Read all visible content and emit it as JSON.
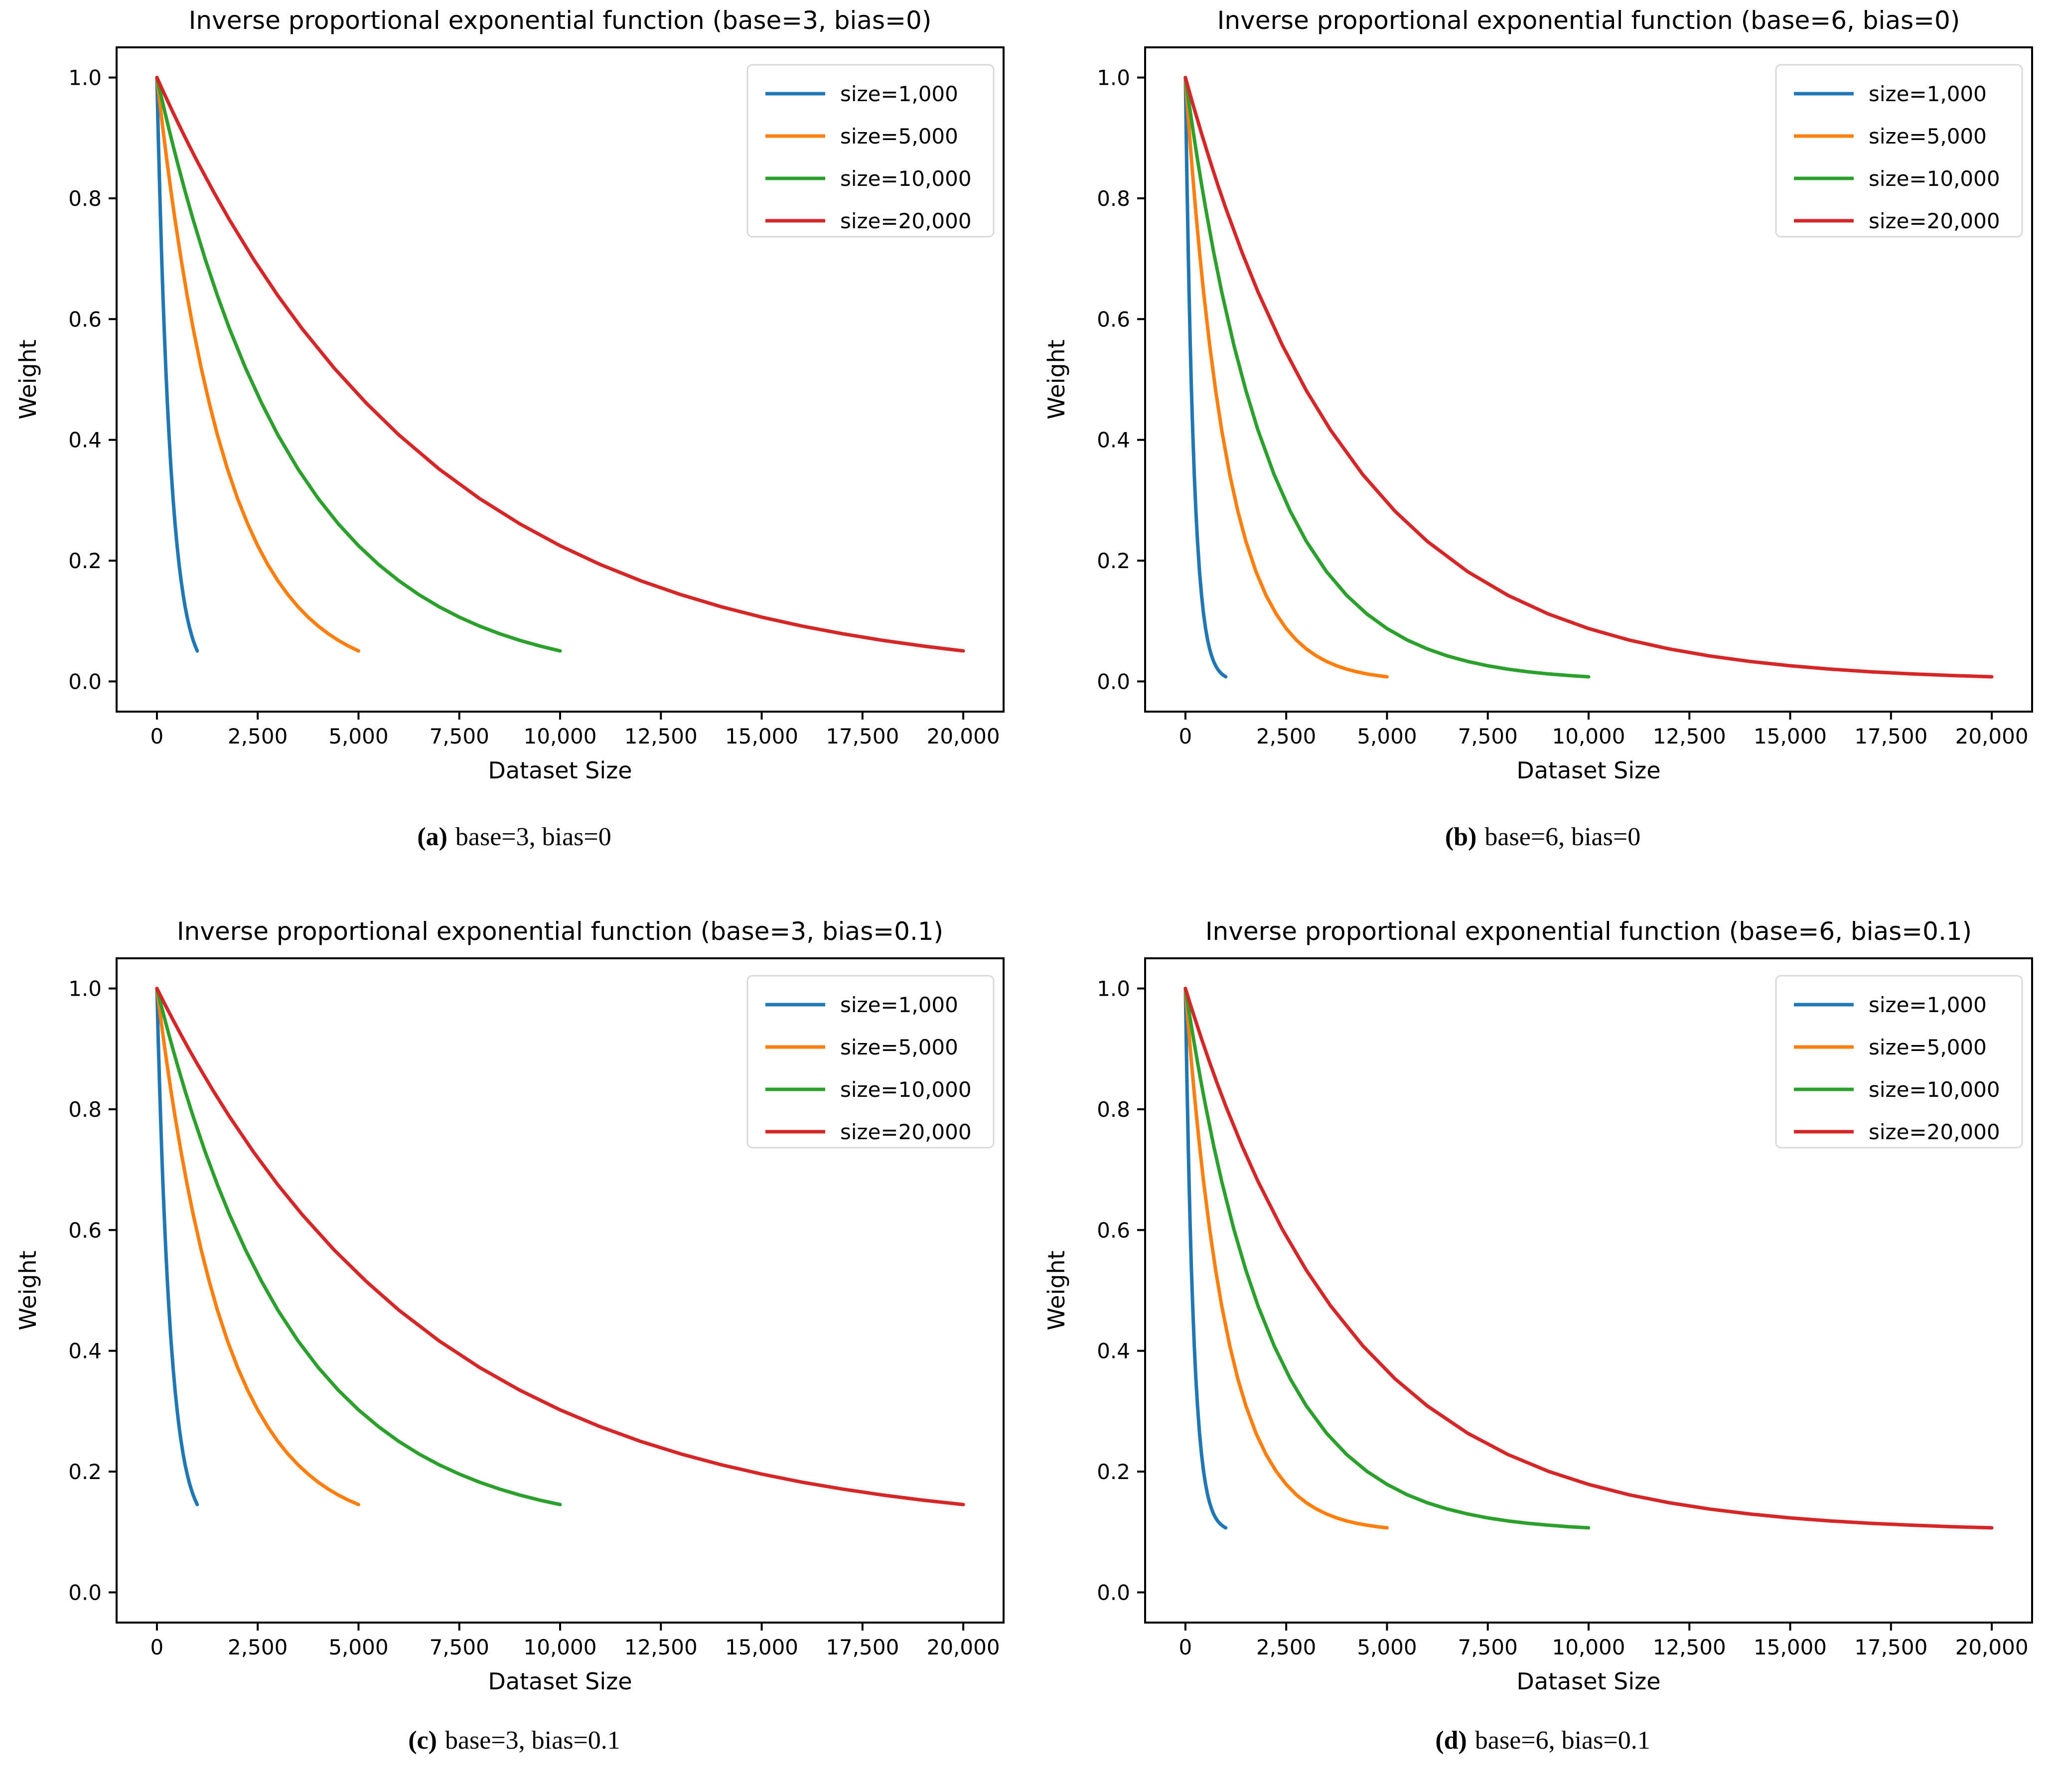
{
  "figure": {
    "background": "#ffffff",
    "text_color": "#000000",
    "legend_border_color": "#d9d9d9",
    "series_colors": {
      "blue": "#1f77b4",
      "orange": "#ff7f0e",
      "green": "#2ca02c",
      "red": "#d62728"
    }
  },
  "chart_data": [
    {
      "id": "a",
      "type": "line",
      "title": "Inverse proportional exponential function (base=3, bias=0)",
      "caption_label": "(a)",
      "caption_text": "base=3, bias=0",
      "xlabel": "Dataset Size",
      "ylabel": "Weight",
      "base": 3,
      "bias": 0,
      "grid": false,
      "legend_position": "upper right",
      "xlim": [
        -1000,
        21000
      ],
      "ylim": [
        -0.05,
        1.05
      ],
      "x_ticks": [
        {
          "v": 0,
          "label": "0"
        },
        {
          "v": 2500,
          "label": "2,500"
        },
        {
          "v": 5000,
          "label": "5,000"
        },
        {
          "v": 7500,
          "label": "7,500"
        },
        {
          "v": 10000,
          "label": "10,000"
        },
        {
          "v": 12500,
          "label": "12,500"
        },
        {
          "v": 15000,
          "label": "15,000"
        },
        {
          "v": 17500,
          "label": "17,500"
        },
        {
          "v": 20000,
          "label": "20,000"
        }
      ],
      "y_ticks": [
        {
          "v": 0.0,
          "label": "0.0"
        },
        {
          "v": 0.2,
          "label": "0.2"
        },
        {
          "v": 0.4,
          "label": "0.4"
        },
        {
          "v": 0.6,
          "label": "0.6"
        },
        {
          "v": 0.8,
          "label": "0.8"
        },
        {
          "v": 1.0,
          "label": "1.0"
        }
      ],
      "series": [
        {
          "label": "size=1,000",
          "color": "#1f77b4",
          "size": 1000
        },
        {
          "label": "size=5,000",
          "color": "#ff7f0e",
          "size": 5000
        },
        {
          "label": "size=10,000",
          "color": "#2ca02c",
          "size": 10000
        },
        {
          "label": "size=20,000",
          "color": "#d62728",
          "size": 20000
        }
      ],
      "curve": {
        "t": [
          0,
          0.005,
          0.01,
          0.02,
          0.03,
          0.04,
          0.05,
          0.07,
          0.09,
          0.12,
          0.15,
          0.18,
          0.22,
          0.26,
          0.3,
          0.35,
          0.4,
          0.45,
          0.5,
          0.55,
          0.6,
          0.65,
          0.7,
          0.75,
          0.8,
          0.85,
          0.9,
          0.95,
          1
        ],
        "w": [
          1,
          0.9852,
          0.9706,
          0.942,
          0.9143,
          0.8874,
          0.8613,
          0.8114,
          0.7643,
          0.6988,
          0.6389,
          0.5842,
          0.5186,
          0.4604,
          0.4082,
          0.3516,
          0.3029,
          0.2609,
          0.2247,
          0.1935,
          0.1667,
          0.1436,
          0.1236,
          0.1065,
          0.0917,
          0.079,
          0.068,
          0.0586,
          0.0505
        ]
      }
    },
    {
      "id": "b",
      "type": "line",
      "title": "Inverse proportional exponential function (base=6, bias=0)",
      "caption_label": "(b)",
      "caption_text": "base=6, bias=0",
      "xlabel": "Dataset Size",
      "ylabel": "Weight",
      "base": 6,
      "bias": 0,
      "grid": false,
      "legend_position": "upper right",
      "xlim": [
        -1000,
        21000
      ],
      "ylim": [
        -0.05,
        1.05
      ],
      "x_ticks": [
        {
          "v": 0,
          "label": "0"
        },
        {
          "v": 2500,
          "label": "2,500"
        },
        {
          "v": 5000,
          "label": "5,000"
        },
        {
          "v": 7500,
          "label": "7,500"
        },
        {
          "v": 10000,
          "label": "10,000"
        },
        {
          "v": 12500,
          "label": "12,500"
        },
        {
          "v": 15000,
          "label": "15,000"
        },
        {
          "v": 17500,
          "label": "17,500"
        },
        {
          "v": 20000,
          "label": "20,000"
        }
      ],
      "y_ticks": [
        {
          "v": 0.0,
          "label": "0.0"
        },
        {
          "v": 0.2,
          "label": "0.2"
        },
        {
          "v": 0.4,
          "label": "0.4"
        },
        {
          "v": 0.6,
          "label": "0.6"
        },
        {
          "v": 0.8,
          "label": "0.8"
        },
        {
          "v": 1.0,
          "label": "1.0"
        }
      ],
      "series": [
        {
          "label": "size=1,000",
          "color": "#1f77b4",
          "size": 1000
        },
        {
          "label": "size=5,000",
          "color": "#ff7f0e",
          "size": 5000
        },
        {
          "label": "size=10,000",
          "color": "#2ca02c",
          "size": 10000
        },
        {
          "label": "size=20,000",
          "color": "#d62728",
          "size": 20000
        }
      ],
      "curve": {
        "t": [
          0,
          0.005,
          0.01,
          0.02,
          0.03,
          0.04,
          0.05,
          0.07,
          0.09,
          0.12,
          0.15,
          0.18,
          0.22,
          0.26,
          0.3,
          0.35,
          0.4,
          0.45,
          0.5,
          0.55,
          0.6,
          0.65,
          0.7,
          0.75,
          0.8,
          0.85,
          0.9,
          0.95,
          1
        ],
        "w": [
          1,
          0.9759,
          0.9525,
          0.9072,
          0.8641,
          0.823,
          0.7839,
          0.7111,
          0.6451,
          0.5573,
          0.4816,
          0.4162,
          0.3425,
          0.2818,
          0.2319,
          0.1818,
          0.1425,
          0.1117,
          0.0876,
          0.0686,
          0.0538,
          0.0422,
          0.0331,
          0.0259,
          0.0203,
          0.0159,
          0.0125,
          0.0098,
          0.0077
        ]
      }
    },
    {
      "id": "c",
      "type": "line",
      "title": "Inverse proportional exponential function (base=3, bias=0.1)",
      "caption_label": "(c)",
      "caption_text": "base=3, bias=0.1",
      "xlabel": "Dataset Size",
      "ylabel": "Weight",
      "base": 3,
      "bias": 0.1,
      "grid": false,
      "legend_position": "upper right",
      "xlim": [
        -1000,
        21000
      ],
      "ylim": [
        -0.05,
        1.05
      ],
      "x_ticks": [
        {
          "v": 0,
          "label": "0"
        },
        {
          "v": 2500,
          "label": "2,500"
        },
        {
          "v": 5000,
          "label": "5,000"
        },
        {
          "v": 7500,
          "label": "7,500"
        },
        {
          "v": 10000,
          "label": "10,000"
        },
        {
          "v": 12500,
          "label": "12,500"
        },
        {
          "v": 15000,
          "label": "15,000"
        },
        {
          "v": 17500,
          "label": "17,500"
        },
        {
          "v": 20000,
          "label": "20,000"
        }
      ],
      "y_ticks": [
        {
          "v": 0.0,
          "label": "0.0"
        },
        {
          "v": 0.2,
          "label": "0.2"
        },
        {
          "v": 0.4,
          "label": "0.4"
        },
        {
          "v": 0.6,
          "label": "0.6"
        },
        {
          "v": 0.8,
          "label": "0.8"
        },
        {
          "v": 1.0,
          "label": "1.0"
        }
      ],
      "series": [
        {
          "label": "size=1,000",
          "color": "#1f77b4",
          "size": 1000
        },
        {
          "label": "size=5,000",
          "color": "#ff7f0e",
          "size": 5000
        },
        {
          "label": "size=10,000",
          "color": "#2ca02c",
          "size": 10000
        },
        {
          "label": "size=20,000",
          "color": "#d62728",
          "size": 20000
        }
      ],
      "curve": {
        "t": [
          0,
          0.005,
          0.01,
          0.02,
          0.03,
          0.04,
          0.05,
          0.07,
          0.09,
          0.12,
          0.15,
          0.18,
          0.22,
          0.26,
          0.3,
          0.35,
          0.4,
          0.45,
          0.5,
          0.55,
          0.6,
          0.65,
          0.7,
          0.75,
          0.8,
          0.85,
          0.9,
          0.95,
          1
        ],
        "w": [
          1,
          0.9867,
          0.9735,
          0.9478,
          0.9229,
          0.8987,
          0.8752,
          0.8302,
          0.7879,
          0.7289,
          0.675,
          0.6258,
          0.5668,
          0.5144,
          0.4674,
          0.4164,
          0.3726,
          0.3348,
          0.3022,
          0.2742,
          0.25,
          0.2292,
          0.2113,
          0.1959,
          0.1825,
          0.1711,
          0.1612,
          0.1527,
          0.1454
        ]
      }
    },
    {
      "id": "d",
      "type": "line",
      "title": "Inverse proportional exponential function (base=6, bias=0.1)",
      "caption_label": "(d)",
      "caption_text": "base=6, bias=0.1",
      "xlabel": "Dataset Size",
      "ylabel": "Weight",
      "base": 6,
      "bias": 0.1,
      "grid": false,
      "legend_position": "upper right",
      "xlim": [
        -1000,
        21000
      ],
      "ylim": [
        -0.05,
        1.05
      ],
      "x_ticks": [
        {
          "v": 0,
          "label": "0"
        },
        {
          "v": 2500,
          "label": "2,500"
        },
        {
          "v": 5000,
          "label": "5,000"
        },
        {
          "v": 7500,
          "label": "7,500"
        },
        {
          "v": 10000,
          "label": "10,000"
        },
        {
          "v": 12500,
          "label": "12,500"
        },
        {
          "v": 15000,
          "label": "15,000"
        },
        {
          "v": 17500,
          "label": "17,500"
        },
        {
          "v": 20000,
          "label": "20,000"
        }
      ],
      "y_ticks": [
        {
          "v": 0.0,
          "label": "0.0"
        },
        {
          "v": 0.2,
          "label": "0.2"
        },
        {
          "v": 0.4,
          "label": "0.4"
        },
        {
          "v": 0.6,
          "label": "0.6"
        },
        {
          "v": 0.8,
          "label": "0.8"
        },
        {
          "v": 1.0,
          "label": "1.0"
        }
      ],
      "series": [
        {
          "label": "size=1,000",
          "color": "#1f77b4",
          "size": 1000
        },
        {
          "label": "size=5,000",
          "color": "#ff7f0e",
          "size": 5000
        },
        {
          "label": "size=10,000",
          "color": "#2ca02c",
          "size": 10000
        },
        {
          "label": "size=20,000",
          "color": "#d62728",
          "size": 20000
        }
      ],
      "curve": {
        "t": [
          0,
          0.005,
          0.01,
          0.02,
          0.03,
          0.04,
          0.05,
          0.07,
          0.09,
          0.12,
          0.15,
          0.18,
          0.22,
          0.26,
          0.3,
          0.35,
          0.4,
          0.45,
          0.5,
          0.55,
          0.6,
          0.65,
          0.7,
          0.75,
          0.8,
          0.85,
          0.9,
          0.95,
          1
        ],
        "w": [
          1,
          0.9783,
          0.9573,
          0.9165,
          0.8777,
          0.8407,
          0.8055,
          0.74,
          0.6806,
          0.6016,
          0.5334,
          0.4746,
          0.4083,
          0.3536,
          0.3087,
          0.2636,
          0.2283,
          0.2005,
          0.1788,
          0.1617,
          0.1484,
          0.138,
          0.1298,
          0.1233,
          0.1183,
          0.1143,
          0.1113,
          0.1088,
          0.1069
        ]
      }
    }
  ]
}
